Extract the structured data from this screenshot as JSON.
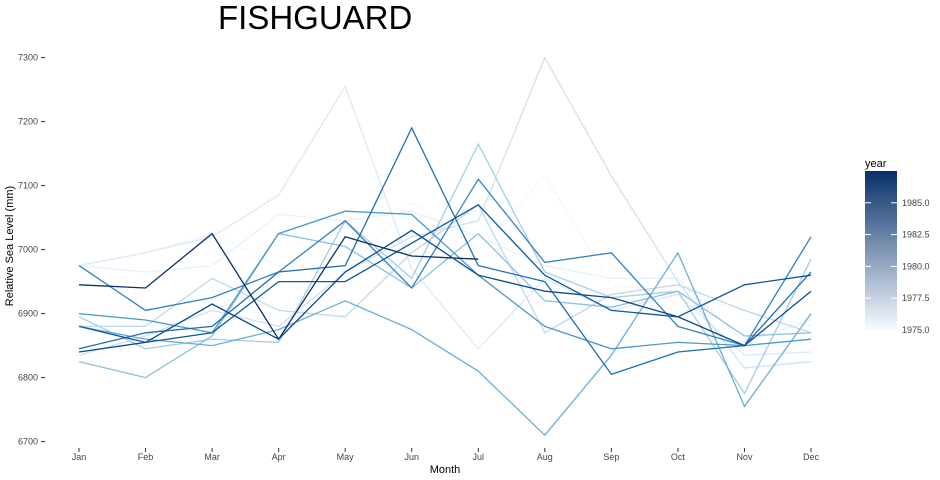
{
  "chart_data": {
    "type": "line",
    "title": "FISHGUARD",
    "xlabel": "Month",
    "ylabel": "Relative Sea Level (mm)",
    "categories": [
      "Jan",
      "Feb",
      "Mar",
      "Apr",
      "May",
      "Jun",
      "Jul",
      "Aug",
      "Sep",
      "Oct",
      "Nov",
      "Dec"
    ],
    "ylim": [
      6690,
      7315
    ],
    "yticks": [
      6700,
      6800,
      6900,
      7000,
      7100,
      7200,
      7300
    ],
    "grid": false,
    "legend": {
      "title": "year",
      "placement": "right",
      "type": "colorbar",
      "range": [
        1975,
        1987.5
      ],
      "ticks": [
        1975.0,
        1977.5,
        1980.0,
        1982.5,
        1985.0
      ],
      "tick_labels": [
        "1975.0",
        "1977.5",
        "1980.0",
        "1982.5",
        "1985.0"
      ],
      "color_low": "#f7fbff",
      "color_high": "#08306b"
    },
    "series": [
      {
        "year": 1975,
        "color": "#f4f8fd",
        "values": [
          6976,
          6995,
          7025,
          6975,
          6965,
          7075,
          7000,
          7115,
          6945,
          6930,
          6905,
          6880
        ]
      },
      {
        "year": 1976,
        "color": "#e8f1fa",
        "values": [
          6975,
          6965,
          6975,
          7055,
          7045,
          7060,
          7020,
          6975,
          6955,
          6955,
          6855,
          6890
        ]
      },
      {
        "year": 1977,
        "color": "#dbe9f6",
        "values": [
          6975,
          6995,
          7020,
          7085,
          7255,
          6970,
          6845,
          6955,
          6905,
          6930,
          6835,
          6840
        ]
      },
      {
        "year": 1978,
        "color": "#cfe1f2",
        "values": [
          6835,
          6865,
          6905,
          6880,
          6965,
          7020,
          7045,
          7300,
          7115,
          6950,
          6815,
          6825
        ]
      },
      {
        "year": 1979,
        "color": "#bfd8ed",
        "values": [
          6880,
          6880,
          6955,
          6905,
          6895,
          6995,
          7070,
          6870,
          6930,
          6945,
          6905,
          6870
        ]
      },
      {
        "year": 1980,
        "color": "#a6cde4",
        "values": [
          6895,
          6845,
          6860,
          6855,
          7045,
          6955,
          7165,
          6965,
          6925,
          6935,
          6775,
          6985
        ]
      },
      {
        "year": 1981,
        "color": "#8dbfdd",
        "values": [
          6825,
          6800,
          6865,
          7025,
          7005,
          6940,
          7025,
          6920,
          6910,
          6935,
          6865,
          6870
        ]
      },
      {
        "year": 1982,
        "color": "#6aaed6",
        "values": [
          6880,
          6860,
          6850,
          6875,
          6920,
          6875,
          6810,
          6710,
          6835,
          6995,
          6755,
          6900
        ]
      },
      {
        "year": 1983,
        "color": "#4d99ca",
        "values": [
          6900,
          6890,
          6870,
          7025,
          7060,
          7055,
          6960,
          6880,
          6845,
          6855,
          6850,
          6860
        ]
      },
      {
        "year": 1984,
        "color": "#3282be",
        "values": [
          6975,
          6905,
          6925,
          6965,
          7045,
          6940,
          7110,
          6980,
          6995,
          6880,
          6850,
          7020
        ]
      },
      {
        "year": 1985,
        "color": "#1f6db1",
        "values": [
          6845,
          6870,
          6880,
          6965,
          6975,
          7190,
          6975,
          6950,
          6805,
          6840,
          6850,
          6965
        ]
      },
      {
        "year": 1986,
        "color": "#0f579f",
        "values": [
          6880,
          6855,
          6870,
          6950,
          6950,
          7010,
          7070,
          6960,
          6905,
          6895,
          6945,
          6960
        ]
      },
      {
        "year": 1987,
        "color": "#08306b",
        "values": [
          6945,
          6940,
          7025,
          6860,
          7020,
          6990,
          6985,
          null,
          null,
          null,
          null,
          null
        ]
      },
      {
        "year": 1987,
        "color": "#0a4a90",
        "values": [
          6840,
          6855,
          6915,
          6860,
          6965,
          7030,
          6960,
          6935,
          6925,
          6895,
          6850,
          6935
        ]
      }
    ]
  }
}
